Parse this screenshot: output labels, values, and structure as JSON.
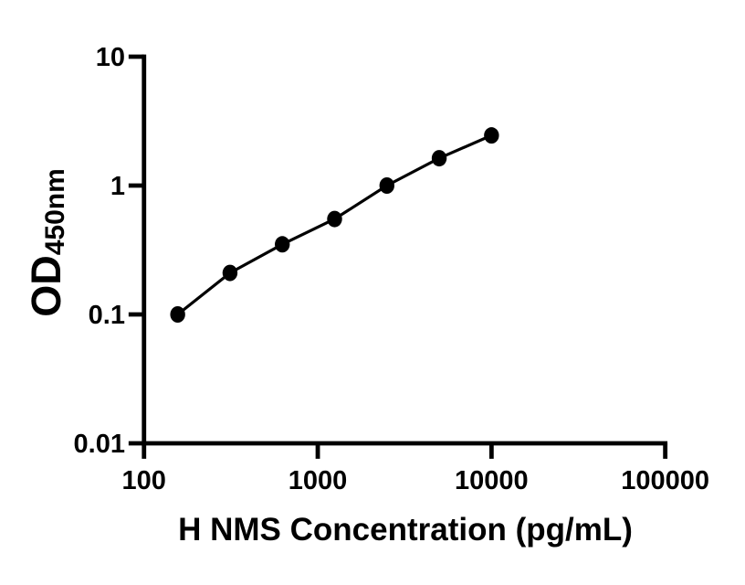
{
  "figure": {
    "background_color": "#ffffff",
    "ink_color": "#000000"
  },
  "chart_data": {
    "type": "scatter",
    "subtype": "standard-curve-with-fit-line",
    "xlabel": "H NMS Concentration (pg/mL)",
    "ylabel_main": "OD",
    "ylabel_sub": "450nm",
    "x_scale": "log",
    "y_scale": "log",
    "xlim": [
      100,
      100000
    ],
    "ylim": [
      0.01,
      10
    ],
    "x_ticks": [
      100,
      1000,
      10000,
      100000
    ],
    "x_tick_labels": [
      "100",
      "1000",
      "10000",
      "100000"
    ],
    "y_ticks": [
      10,
      1,
      0.1,
      0.01
    ],
    "y_tick_labels": [
      "10",
      "1",
      "0.1",
      "0.01"
    ],
    "grid": false,
    "legend": false,
    "series": [
      {
        "marker": "filled-circle",
        "color": "#000000",
        "line_color": "#000000",
        "points": [
          {
            "x": 156.25,
            "y": 0.1
          },
          {
            "x": 312.5,
            "y": 0.21
          },
          {
            "x": 625,
            "y": 0.35
          },
          {
            "x": 1250,
            "y": 0.55
          },
          {
            "x": 2500,
            "y": 1.0
          },
          {
            "x": 5000,
            "y": 1.63
          },
          {
            "x": 10000,
            "y": 2.45
          }
        ]
      }
    ]
  }
}
